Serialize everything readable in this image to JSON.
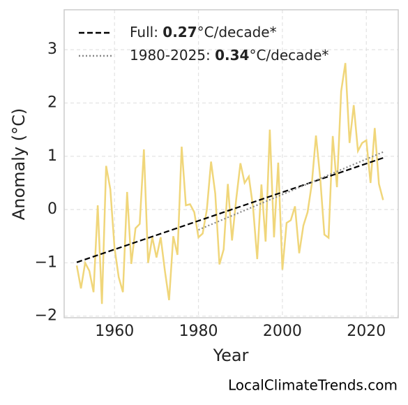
{
  "chart_data": {
    "type": "line",
    "xlabel": "Year",
    "ylabel": "Anomaly (°C)",
    "watermark": "LocalClimateTrends.com",
    "xlim": [
      1948,
      2027.6
    ],
    "ylim": [
      -2.03,
      3.75
    ],
    "xticks": [
      1960,
      1980,
      2000,
      2020
    ],
    "yticks": [
      {
        "value": -2,
        "label": "−2"
      },
      {
        "value": -1,
        "label": "−1"
      },
      0,
      1,
      2,
      3
    ],
    "grid": true,
    "legend": "upper left",
    "series": [
      {
        "color": "#f0d67a",
        "style": "solid",
        "x": [
          1951,
          1952,
          1953,
          1954,
          1955,
          1956,
          1957,
          1958,
          1959,
          1960,
          1961,
          1962,
          1963,
          1964,
          1965,
          1966,
          1967,
          1968,
          1969,
          1970,
          1971,
          1972,
          1973,
          1974,
          1975,
          1976,
          1977,
          1978,
          1979,
          1980,
          1981,
          1982,
          1983,
          1984,
          1985,
          1986,
          1987,
          1988,
          1989,
          1990,
          1991,
          1992,
          1993,
          1994,
          1995,
          1996,
          1997,
          1998,
          1999,
          2000,
          2001,
          2002,
          2003,
          2004,
          2005,
          2006,
          2007,
          2008,
          2009,
          2010,
          2011,
          2012,
          2013,
          2014,
          2015,
          2016,
          2017,
          2018,
          2019,
          2020,
          2021,
          2022,
          2023,
          2024
        ],
        "values": [
          -1.05,
          -1.48,
          -1.0,
          -1.15,
          -1.55,
          0.08,
          -1.77,
          0.82,
          0.38,
          -0.72,
          -1.27,
          -1.55,
          0.33,
          -1.02,
          -0.35,
          -0.27,
          1.13,
          -1.0,
          -0.52,
          -0.9,
          -0.52,
          -1.15,
          -1.7,
          -0.5,
          -0.85,
          1.18,
          0.08,
          0.1,
          -0.05,
          -0.52,
          -0.45,
          0.0,
          0.9,
          0.3,
          -1.03,
          -0.75,
          0.48,
          -0.58,
          0.2,
          0.87,
          0.5,
          0.62,
          0.05,
          -0.93,
          0.47,
          -0.6,
          1.5,
          -0.52,
          0.88,
          -1.13,
          -0.25,
          -0.2,
          0.06,
          -0.82,
          -0.3,
          -0.05,
          0.48,
          1.39,
          0.6,
          -0.47,
          -0.53,
          1.38,
          0.42,
          2.22,
          2.75,
          1.25,
          1.96,
          1.1,
          1.25,
          1.3,
          0.5,
          1.53,
          0.48,
          0.18
        ]
      },
      {
        "name": [
          "Full: ",
          "0.27",
          "°C/decade*"
        ],
        "color": "#000000",
        "style": "dashed",
        "x": [
          1951,
          2024
        ],
        "values": [
          -0.99,
          0.97
        ]
      },
      {
        "name": [
          "1980-2025: ",
          "0.34",
          "°C/decade*"
        ],
        "color": "#888888",
        "style": "dotted",
        "x": [
          1980,
          2024
        ],
        "values": [
          -0.38,
          1.08
        ]
      }
    ]
  }
}
